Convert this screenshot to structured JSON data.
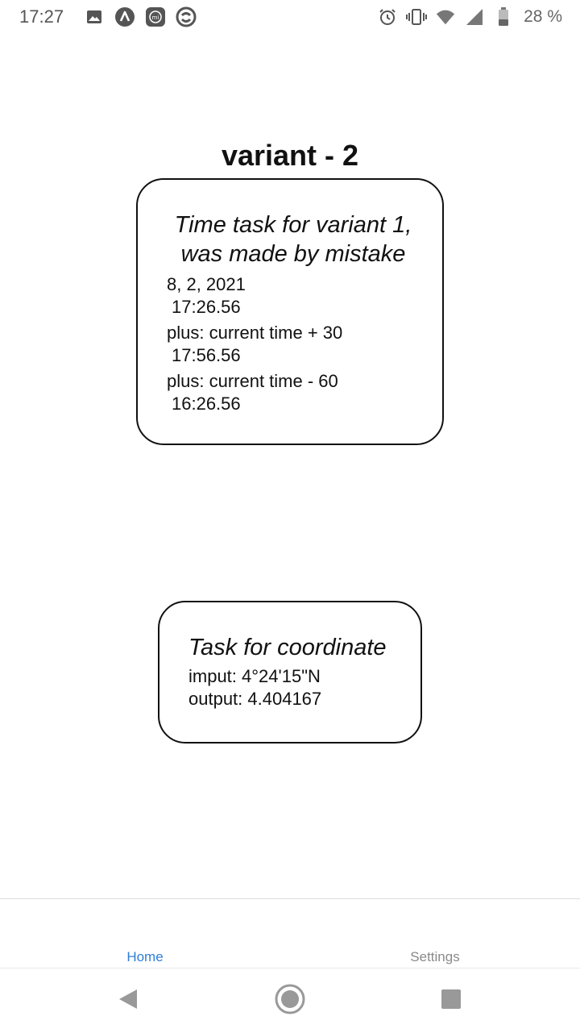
{
  "status_bar": {
    "time": "17:27",
    "left_icons": [
      "image-icon",
      "app-a-icon",
      "mi-icon",
      "sync-icon"
    ],
    "right_icons": [
      "alarm-icon",
      "vibrate-icon",
      "wifi-icon",
      "signal-icon",
      "battery-icon"
    ],
    "battery_percent": "28 %"
  },
  "page": {
    "title": "variant - 2"
  },
  "time_card": {
    "title_line1": "Time task for variant 1,",
    "title_line2": "was made by mistake",
    "date": "8, 2, 2021",
    "current_time": "17:26.56",
    "plus_label": "plus: current time + 30",
    "plus_time": "17:56.56",
    "minus_label": "plus: current time - 60",
    "minus_time": "16:26.56"
  },
  "coord_card": {
    "title": "Task for coordinate",
    "input_line": "imput: 4°24'15\"N",
    "output_line": "output: 4.404167"
  },
  "tabs": {
    "home": "Home",
    "settings": "Settings",
    "active": "home",
    "active_color": "#2f7fd6",
    "inactive_color": "#8a8a8a"
  },
  "nav": {
    "icons": [
      "back-icon",
      "home-circle-icon",
      "recents-icon"
    ]
  }
}
